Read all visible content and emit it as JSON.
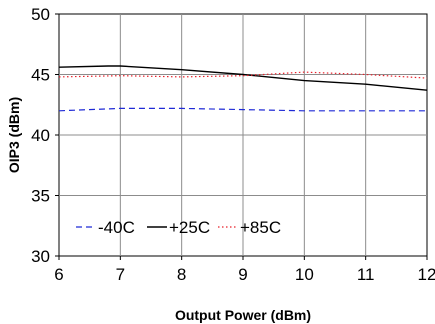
{
  "chart_data": {
    "type": "line",
    "title": "",
    "xlabel": "Output Power (dBm)",
    "ylabel": "OIP3 (dBm)",
    "xlim": [
      6,
      12
    ],
    "ylim": [
      30,
      50
    ],
    "xticks": [
      6,
      7,
      8,
      9,
      10,
      11,
      12
    ],
    "yticks": [
      30,
      35,
      40,
      45,
      50
    ],
    "grid": true,
    "legend_position": "bottom-left",
    "series": [
      {
        "name": "-40C",
        "color": "#1f2ad6",
        "dash": "dashed",
        "x": [
          6,
          7,
          8,
          9,
          10,
          11,
          12
        ],
        "y": [
          42.0,
          42.2,
          42.2,
          42.1,
          42.0,
          42.0,
          42.0
        ]
      },
      {
        "name": "+25C",
        "color": "#000000",
        "dash": "solid",
        "x": [
          6,
          6.8,
          7,
          8,
          9,
          10,
          11,
          12
        ],
        "y": [
          45.6,
          45.7,
          45.7,
          45.4,
          45.0,
          44.5,
          44.2,
          43.7
        ]
      },
      {
        "name": "+85C",
        "color": "#e8202a",
        "dash": "dotted",
        "x": [
          6,
          7,
          8,
          9,
          10,
          11,
          12
        ],
        "y": [
          44.8,
          44.9,
          44.8,
          44.9,
          45.2,
          45.0,
          44.7
        ]
      }
    ]
  }
}
